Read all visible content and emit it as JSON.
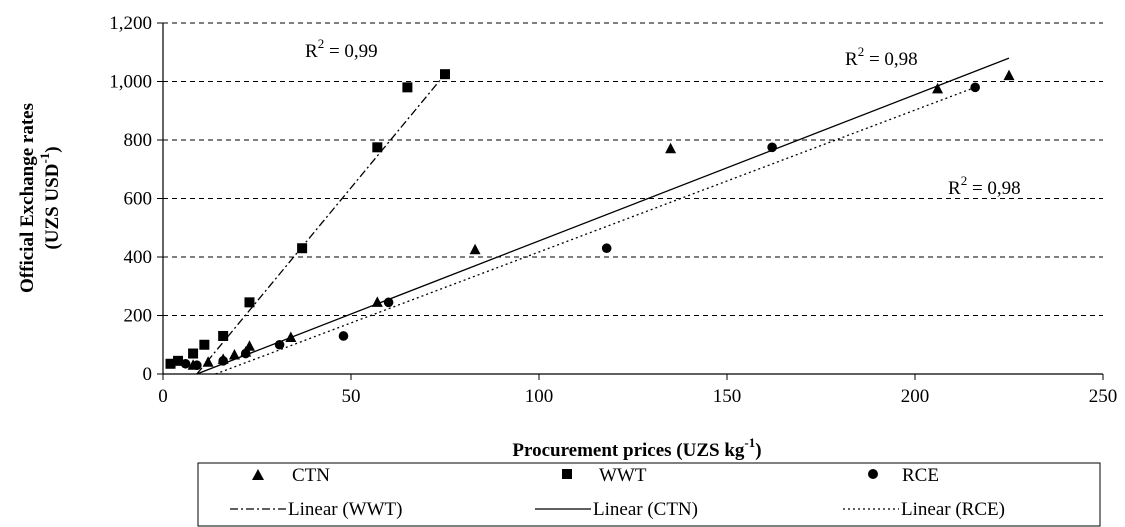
{
  "chart_data": {
    "type": "scatter",
    "title": "",
    "xlabel": "Procurement prices (UZS kg",
    "xlabel_sup": "-1",
    "xlabel_end": ")",
    "ylabel_line1": "Official Exchange rates",
    "ylabel_line2": "(UZS USD",
    "ylabel_sup": "-1",
    "ylabel_end": ")",
    "xlim": [
      0,
      250
    ],
    "ylim": [
      0,
      1200
    ],
    "x_ticks": [
      0,
      50,
      100,
      150,
      200,
      250
    ],
    "x_tick_labels": [
      "0",
      "50",
      "100",
      "150",
      "200",
      "250"
    ],
    "y_ticks": [
      0,
      200,
      400,
      600,
      800,
      1000,
      1200
    ],
    "y_tick_labels": [
      "0",
      "200",
      "400",
      "600",
      "800",
      "1,000",
      "1,200"
    ],
    "grid": "horizontal dashed",
    "legend_position": "bottom",
    "series": [
      {
        "name": "CTN",
        "marker": "triangle",
        "points": [
          [
            8,
            30
          ],
          [
            12,
            40
          ],
          [
            16,
            50
          ],
          [
            19,
            65
          ],
          [
            22,
            75
          ],
          [
            23,
            95
          ],
          [
            34,
            125
          ],
          [
            57,
            245
          ],
          [
            83,
            425
          ],
          [
            135,
            770
          ],
          [
            206,
            975
          ],
          [
            225,
            1020
          ]
        ]
      },
      {
        "name": "WWT",
        "marker": "square",
        "points": [
          [
            2,
            35
          ],
          [
            4,
            45
          ],
          [
            8,
            70
          ],
          [
            11,
            100
          ],
          [
            16,
            130
          ],
          [
            23,
            245
          ],
          [
            37,
            430
          ],
          [
            57,
            775
          ],
          [
            65,
            980
          ],
          [
            75,
            1025
          ]
        ]
      },
      {
        "name": "RCE",
        "marker": "circle",
        "points": [
          [
            6,
            35
          ],
          [
            9,
            30
          ],
          [
            16,
            45
          ],
          [
            22,
            70
          ],
          [
            31,
            100
          ],
          [
            48,
            130
          ],
          [
            60,
            245
          ],
          [
            118,
            430
          ],
          [
            162,
            775
          ],
          [
            216,
            980
          ]
        ]
      }
    ],
    "trendlines": [
      {
        "name": "Linear (WWT)",
        "style": "dash-dot",
        "from": [
          9,
          0
        ],
        "to": [
          75,
          1025
        ],
        "r2_label": "R",
        "r2_sup": "2",
        "r2_value": " = 0,99"
      },
      {
        "name": "Linear (CTN)",
        "style": "solid",
        "from": [
          9,
          0
        ],
        "to": [
          225,
          1080
        ],
        "r2_label": "R",
        "r2_sup": "2",
        "r2_value": " = 0,98"
      },
      {
        "name": "Linear (RCE)",
        "style": "dotted",
        "from": [
          14,
          0
        ],
        "to": [
          216,
          980
        ],
        "r2_label": "R",
        "r2_sup": "2",
        "r2_value": " = 0,98"
      }
    ],
    "legend": {
      "row1": [
        "CTN",
        "WWT",
        "RCE"
      ],
      "row2": [
        "Linear (WWT)",
        "Linear (CTN)",
        "Linear (RCE)"
      ]
    }
  }
}
